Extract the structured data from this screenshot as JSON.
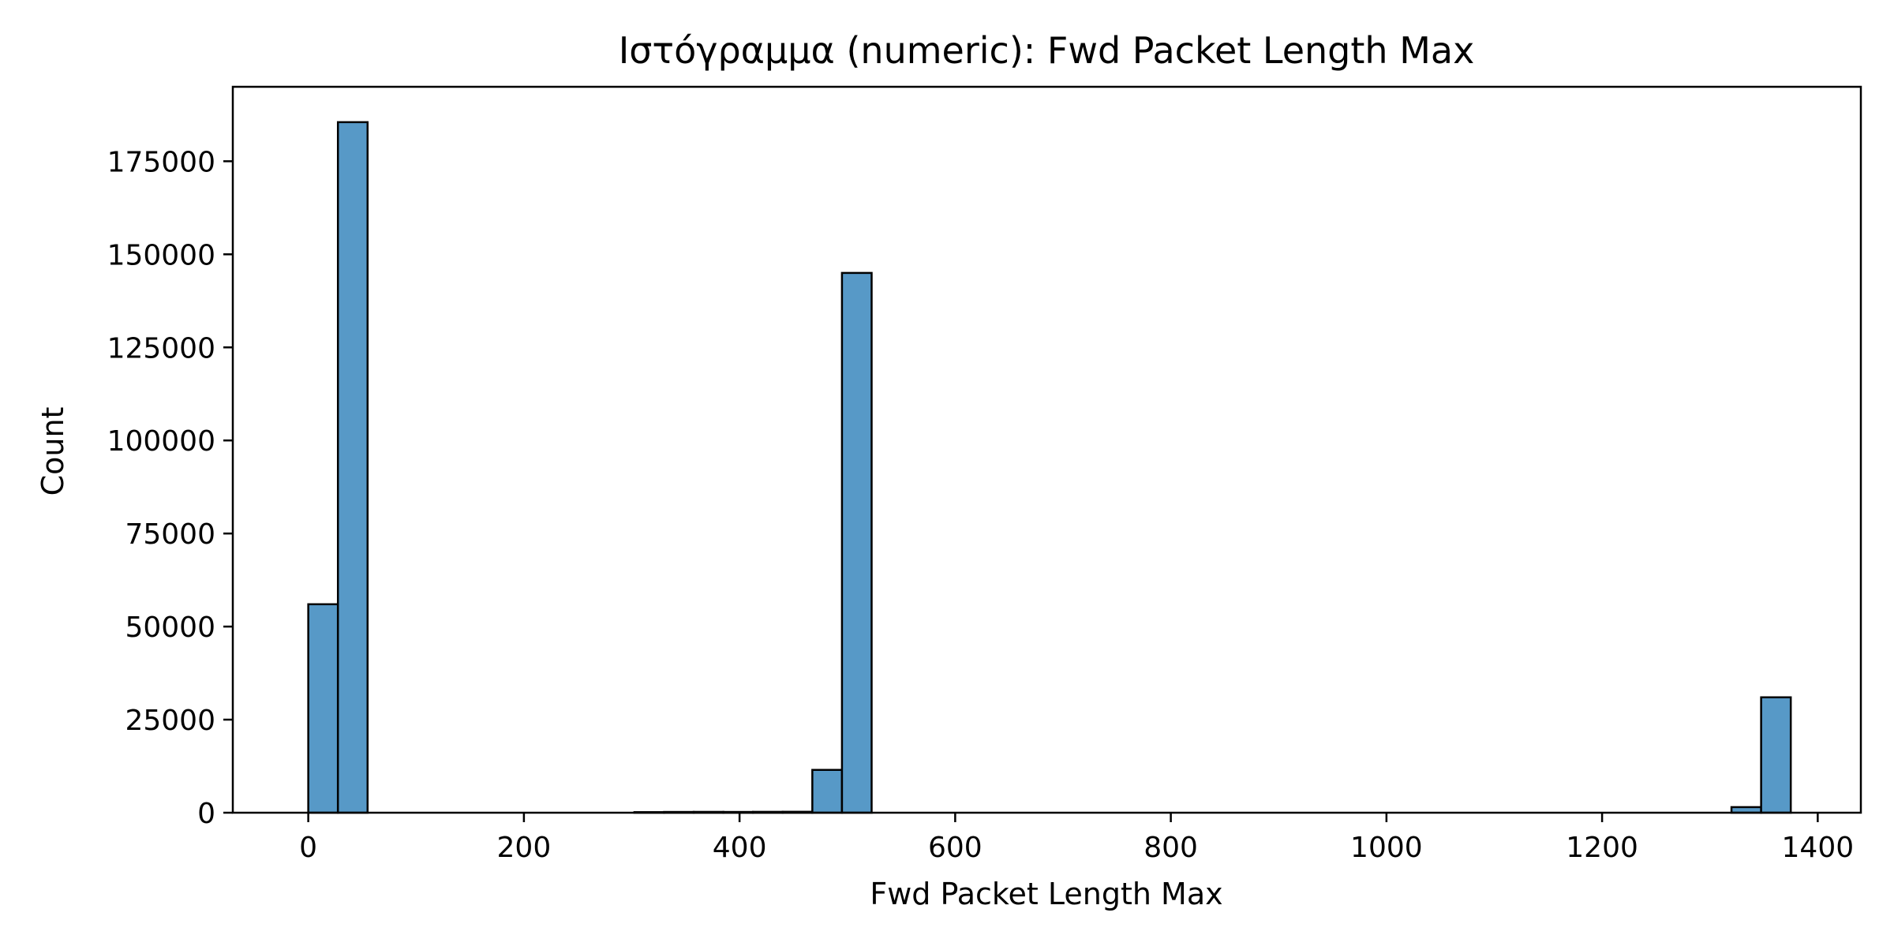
{
  "chart_data": {
    "type": "bar",
    "title": "Ιστόγραμμα (numeric): Fwd Packet Length Max",
    "xlabel": "Fwd Packet Length Max",
    "ylabel": "Count",
    "xlim": [
      -70,
      1440
    ],
    "ylim": [
      0,
      195000
    ],
    "x_ticks": [
      0,
      200,
      400,
      600,
      800,
      1000,
      1200,
      1400
    ],
    "y_ticks": [
      0,
      25000,
      50000,
      75000,
      100000,
      125000,
      150000,
      175000
    ],
    "bin_edges": [
      0,
      27.5,
      55,
      82.5,
      110,
      137.5,
      165,
      192.5,
      220,
      247.5,
      275,
      302.5,
      330,
      357.5,
      385,
      412.5,
      440,
      467.5,
      495,
      522.5,
      550,
      577.5,
      605,
      632.5,
      660,
      687.5,
      715,
      742.5,
      770,
      797.5,
      825,
      852.5,
      880,
      907.5,
      935,
      962.5,
      990,
      1017.5,
      1045,
      1072.5,
      1100,
      1127.5,
      1155,
      1182.5,
      1210,
      1237.5,
      1265,
      1292.5,
      1320,
      1347.5,
      1375
    ],
    "values": [
      56000,
      185500,
      0,
      0,
      0,
      0,
      0,
      0,
      0,
      0,
      0,
      150,
      200,
      220,
      200,
      230,
      250,
      11500,
      145000,
      0,
      0,
      0,
      0,
      0,
      0,
      0,
      0,
      0,
      0,
      0,
      0,
      0,
      0,
      0,
      0,
      0,
      0,
      0,
      0,
      0,
      0,
      0,
      0,
      0,
      0,
      0,
      0,
      0,
      1500,
      31000
    ],
    "bar_color": "#5799c7",
    "edge_color": "#000000",
    "grid": false,
    "legend": "none"
  }
}
